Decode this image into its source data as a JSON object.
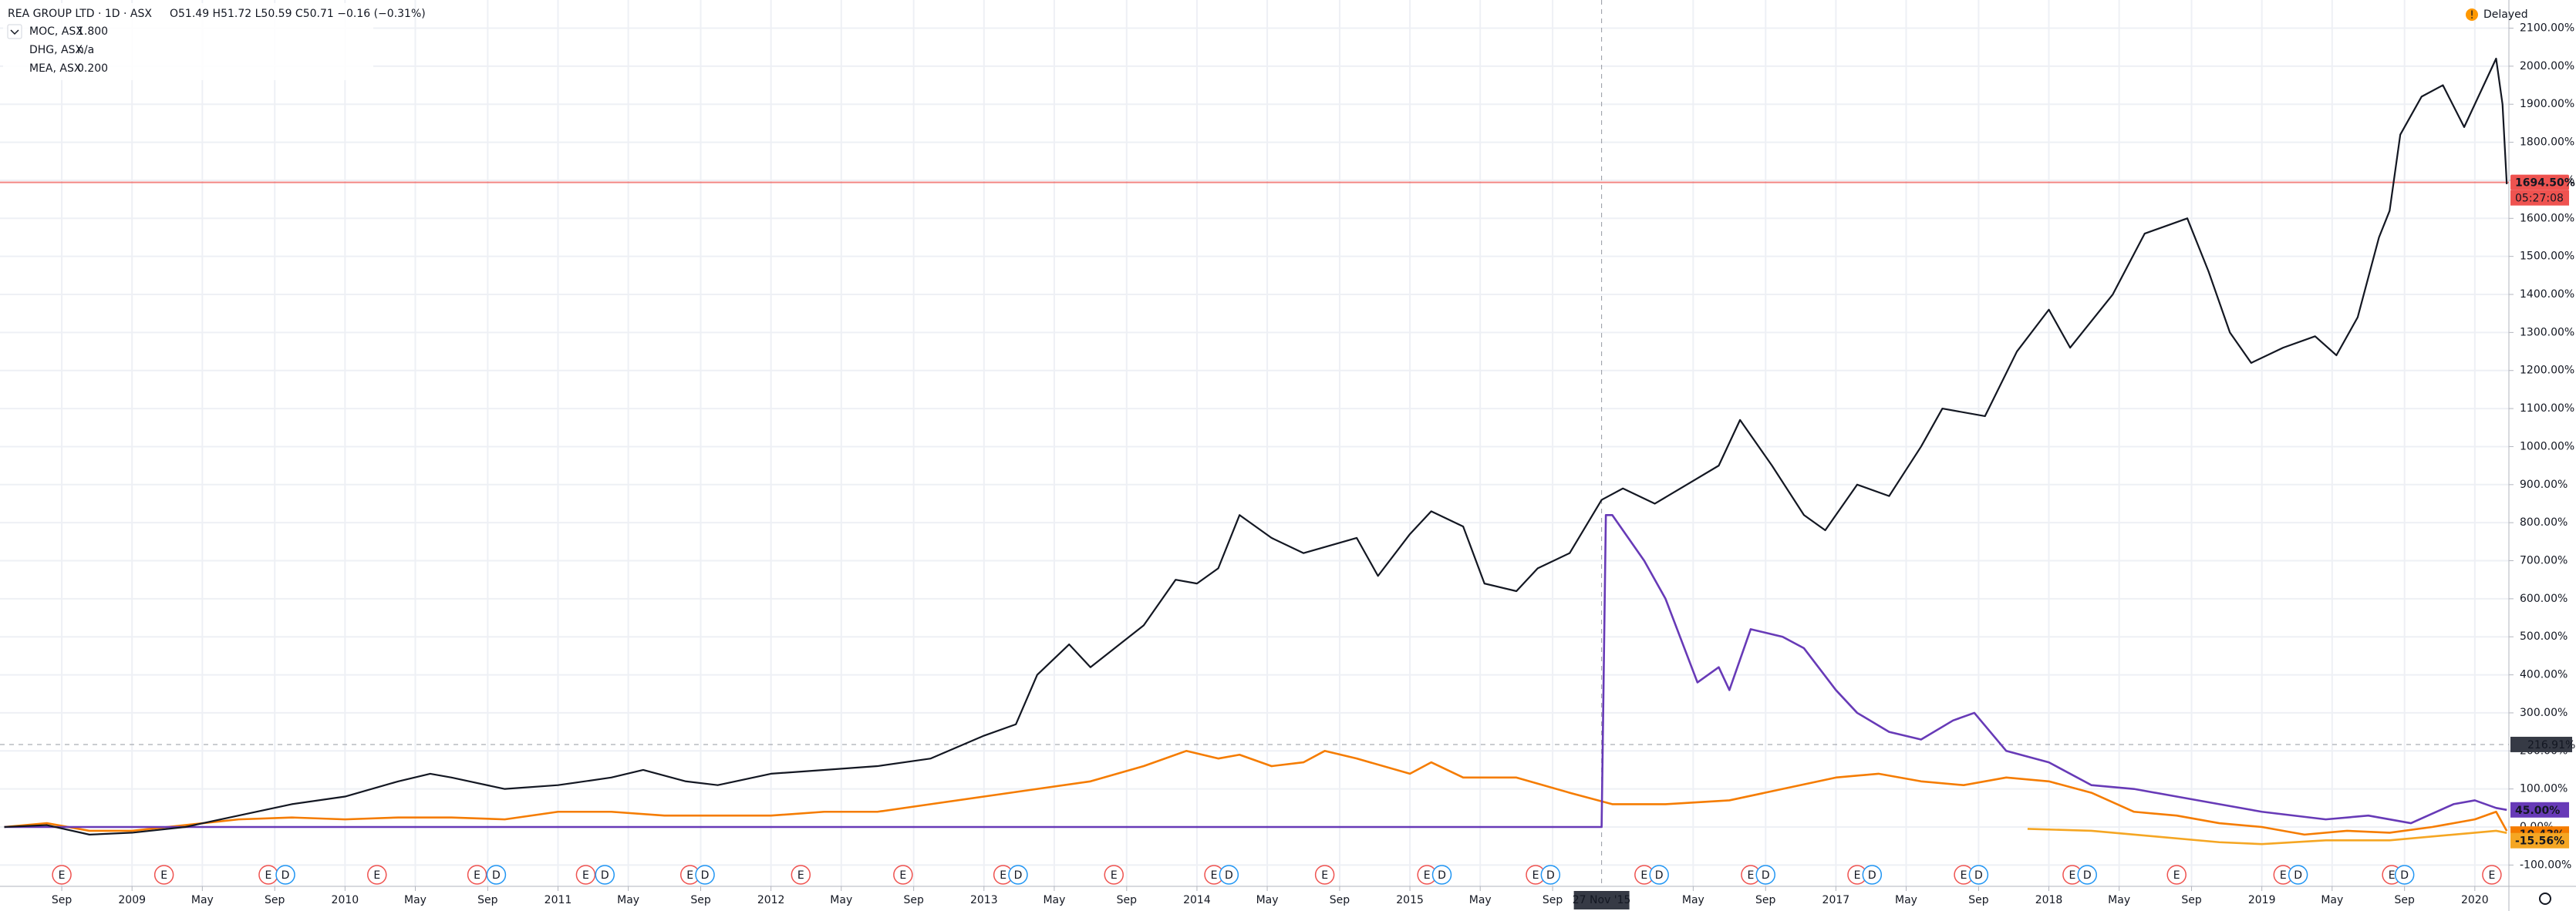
{
  "chart_data": {
    "type": "line",
    "title": "REA GROUP LTD · 1D · ASX",
    "ohlc": "O51.49 H51.72 L50.59 C50.71 −0.16 (−0.31%)",
    "status": "Delayed",
    "compare_legend": [
      {
        "name": "MOC, ASX",
        "value": "1.800",
        "color": "#f57c00"
      },
      {
        "name": "DHG, ASX",
        "value": "n/a",
        "color": "#f5a623"
      },
      {
        "name": "MEA, ASX",
        "value": "0.200",
        "color": "#673ab7"
      }
    ],
    "xlim": [
      2008.38,
      2020.16
    ],
    "ylim": [
      -156,
      2174
    ],
    "grid": true,
    "series": [
      {
        "name": "REA",
        "color": "#131722",
        "x": [
          2008.4,
          2008.6,
          2008.8,
          2009.0,
          2009.25,
          2009.5,
          2009.75,
          2010.0,
          2010.25,
          2010.4,
          2010.5,
          2010.75,
          2011.0,
          2011.25,
          2011.4,
          2011.6,
          2011.75,
          2012.0,
          2012.25,
          2012.5,
          2012.75,
          2013.0,
          2013.15,
          2013.25,
          2013.4,
          2013.5,
          2013.75,
          2013.9,
          2014.0,
          2014.1,
          2014.2,
          2014.35,
          2014.5,
          2014.75,
          2014.85,
          2015.0,
          2015.1,
          2015.25,
          2015.35,
          2015.5,
          2015.6,
          2015.75,
          2015.9,
          2016.0,
          2016.15,
          2016.3,
          2016.45,
          2016.55,
          2016.7,
          2016.85,
          2016.95,
          2017.1,
          2017.25,
          2017.4,
          2017.5,
          2017.7,
          2017.85,
          2018.0,
          2018.1,
          2018.2,
          2018.3,
          2018.45,
          2018.55,
          2018.65,
          2018.75,
          2018.85,
          2018.95,
          2019.1,
          2019.25,
          2019.35,
          2019.45,
          2019.55,
          2019.6,
          2019.65,
          2019.75,
          2019.85,
          2019.95,
          2020.05,
          2020.1,
          2020.13,
          2020.15
        ],
        "values": [
          0,
          5,
          -20,
          -15,
          0,
          30,
          60,
          80,
          120,
          140,
          130,
          100,
          110,
          130,
          150,
          120,
          110,
          140,
          150,
          160,
          180,
          240,
          270,
          400,
          480,
          420,
          530,
          650,
          640,
          680,
          820,
          760,
          720,
          760,
          660,
          770,
          830,
          790,
          640,
          620,
          680,
          720,
          860,
          890,
          850,
          900,
          950,
          1070,
          950,
          820,
          780,
          900,
          870,
          1000,
          1100,
          1080,
          1250,
          1360,
          1260,
          1330,
          1400,
          1560,
          1580,
          1600,
          1460,
          1300,
          1220,
          1260,
          1290,
          1240,
          1340,
          1550,
          1620,
          1820,
          1920,
          1950,
          1840,
          1960,
          2020,
          1900,
          1690
        ]
      },
      {
        "name": "MOC",
        "color": "#f57c00",
        "x": [
          2008.4,
          2008.6,
          2008.8,
          2009.0,
          2009.25,
          2009.5,
          2009.75,
          2010.0,
          2010.25,
          2010.5,
          2010.75,
          2011.0,
          2011.25,
          2011.5,
          2011.75,
          2012.0,
          2012.25,
          2012.5,
          2012.75,
          2013.0,
          2013.25,
          2013.5,
          2013.75,
          2013.95,
          2014.1,
          2014.2,
          2014.35,
          2014.5,
          2014.6,
          2014.75,
          2015.0,
          2015.1,
          2015.25,
          2015.5,
          2015.75,
          2015.95,
          2016.2,
          2016.5,
          2016.75,
          2017.0,
          2017.2,
          2017.4,
          2017.6,
          2017.8,
          2018.0,
          2018.2,
          2018.4,
          2018.6,
          2018.8,
          2019.0,
          2019.2,
          2019.4,
          2019.6,
          2019.8,
          2020.0,
          2020.1,
          2020.15
        ],
        "values": [
          0,
          10,
          -10,
          -10,
          5,
          20,
          25,
          20,
          25,
          25,
          20,
          40,
          40,
          30,
          30,
          30,
          40,
          40,
          60,
          80,
          100,
          120,
          160,
          200,
          180,
          190,
          160,
          170,
          200,
          180,
          140,
          170,
          130,
          130,
          90,
          60,
          60,
          70,
          100,
          130,
          140,
          120,
          110,
          130,
          120,
          90,
          40,
          30,
          10,
          0,
          -20,
          -10,
          -15,
          0,
          20,
          40,
          -10.43
        ]
      },
      {
        "name": "DHG",
        "color": "#f5a623",
        "x": [
          2017.9,
          2018.2,
          2018.5,
          2018.8,
          2019.0,
          2019.3,
          2019.6,
          2019.8,
          2020.0,
          2020.1,
          2020.15
        ],
        "values": [
          -5,
          -10,
          -25,
          -40,
          -45,
          -35,
          -35,
          -25,
          -15,
          -10,
          -15.56
        ]
      },
      {
        "name": "MEA",
        "color": "#673ab7",
        "x": [
          2008.4,
          2015.9,
          2015.92,
          2015.95,
          2016.0,
          2016.1,
          2016.2,
          2016.35,
          2016.45,
          2016.5,
          2016.6,
          2016.75,
          2016.85,
          2017.0,
          2017.1,
          2017.25,
          2017.4,
          2017.55,
          2017.65,
          2017.8,
          2018.0,
          2018.2,
          2018.4,
          2018.6,
          2018.8,
          2019.0,
          2019.3,
          2019.5,
          2019.7,
          2019.9,
          2020.0,
          2020.1,
          2020.15
        ],
        "values": [
          0,
          0,
          820,
          820,
          780,
          700,
          600,
          380,
          420,
          360,
          520,
          500,
          470,
          360,
          300,
          250,
          230,
          280,
          300,
          200,
          170,
          110,
          100,
          80,
          60,
          40,
          20,
          30,
          10,
          60,
          70,
          50,
          45
        ]
      }
    ],
    "yticks": [
      {
        "value": -100,
        "label": "-100.00%"
      },
      {
        "value": 0,
        "label": "0.00%"
      },
      {
        "value": 100,
        "label": "100.00%"
      },
      {
        "value": 200,
        "label": "200.00%"
      },
      {
        "value": 300,
        "label": "300.00%"
      },
      {
        "value": 400,
        "label": "400.00%"
      },
      {
        "value": 500,
        "label": "500.00%"
      },
      {
        "value": 600,
        "label": "600.00%"
      },
      {
        "value": 700,
        "label": "700.00%"
      },
      {
        "value": 800,
        "label": "800.00%"
      },
      {
        "value": 900,
        "label": "900.00%"
      },
      {
        "value": 1000,
        "label": "1000.00%"
      },
      {
        "value": 1100,
        "label": "1100.00%"
      },
      {
        "value": 1200,
        "label": "1200.00%"
      },
      {
        "value": 1300,
        "label": "1300.00%"
      },
      {
        "value": 1400,
        "label": "1400.00%"
      },
      {
        "value": 1500,
        "label": "1500.00%"
      },
      {
        "value": 1600,
        "label": "1600.00%"
      },
      {
        "value": 1700,
        "label": "1700.00%"
      },
      {
        "value": 1800,
        "label": "1800.00%"
      },
      {
        "value": 1900,
        "label": "1900.00%"
      },
      {
        "value": 2000,
        "label": "2000.00%"
      },
      {
        "value": 2100,
        "label": "2100.00%"
      }
    ],
    "xticks": [
      {
        "value": 2008.67,
        "label": "Sep"
      },
      2009,
      {
        "value": 2009.33,
        "label": "May"
      },
      {
        "value": 2009.67,
        "label": "Sep"
      },
      2010,
      {
        "value": 2010.33,
        "label": "May"
      },
      {
        "value": 2010.67,
        "label": "Sep"
      },
      2011,
      {
        "value": 2011.33,
        "label": "May"
      },
      {
        "value": 2011.67,
        "label": "Sep"
      },
      2012,
      {
        "value": 2012.33,
        "label": "May"
      },
      {
        "value": 2012.67,
        "label": "Sep"
      },
      2013,
      {
        "value": 2013.33,
        "label": "May"
      },
      {
        "value": 2013.67,
        "label": "Sep"
      },
      2014,
      {
        "value": 2014.33,
        "label": "May"
      },
      {
        "value": 2014.67,
        "label": "Sep"
      },
      2015,
      {
        "value": 2015.33,
        "label": "May"
      },
      {
        "value": 2015.67,
        "label": "Sep"
      },
      {
        "value": 2016.33,
        "label": "May"
      },
      {
        "value": 2016.67,
        "label": "Sep"
      },
      2017,
      {
        "value": 2017.33,
        "label": "May"
      },
      {
        "value": 2017.67,
        "label": "Sep"
      },
      2018,
      {
        "value": 2018.33,
        "label": "May"
      },
      {
        "value": 2018.67,
        "label": "Sep"
      },
      2019,
      {
        "value": 2019.33,
        "label": "May"
      },
      {
        "value": 2019.67,
        "label": "Sep"
      },
      2020
    ],
    "price_line": {
      "value": 1694.5,
      "label": "1694.50%",
      "color": "#ef5350"
    },
    "countdown": "05:27:08",
    "crosshair": {
      "x": 2015.9,
      "x_label": "27 Nov '15",
      "y": 216.91,
      "y_label": "216.91%"
    },
    "last_labels": [
      {
        "value": 45,
        "label": "45.00%",
        "color": "#673ab7"
      },
      {
        "value": -10.43,
        "label": "-10.43%",
        "color": "#f57c00"
      },
      {
        "value": -15.56,
        "label": "-15.56%",
        "color": "#f5a623"
      }
    ],
    "events": [
      {
        "x": 2008.67,
        "label": "E"
      },
      {
        "x": 2009.15,
        "label": "E"
      },
      {
        "x": 2009.64,
        "label": "E"
      },
      {
        "x": 2009.72,
        "label": "D"
      },
      {
        "x": 2010.15,
        "label": "E"
      },
      {
        "x": 2010.62,
        "label": "E"
      },
      {
        "x": 2010.71,
        "label": "D"
      },
      {
        "x": 2011.13,
        "label": "E"
      },
      {
        "x": 2011.22,
        "label": "D"
      },
      {
        "x": 2011.62,
        "label": "E"
      },
      {
        "x": 2011.69,
        "label": "D"
      },
      {
        "x": 2012.14,
        "label": "E"
      },
      {
        "x": 2012.62,
        "label": "E"
      },
      {
        "x": 2013.09,
        "label": "E"
      },
      {
        "x": 2013.16,
        "label": "D"
      },
      {
        "x": 2013.61,
        "label": "E"
      },
      {
        "x": 2014.08,
        "label": "E"
      },
      {
        "x": 2014.15,
        "label": "D"
      },
      {
        "x": 2014.6,
        "label": "E"
      },
      {
        "x": 2015.08,
        "label": "E"
      },
      {
        "x": 2015.15,
        "label": "D"
      },
      {
        "x": 2015.59,
        "label": "E"
      },
      {
        "x": 2015.66,
        "label": "D"
      },
      {
        "x": 2016.1,
        "label": "E"
      },
      {
        "x": 2016.17,
        "label": "D"
      },
      {
        "x": 2016.6,
        "label": "E"
      },
      {
        "x": 2016.67,
        "label": "D"
      },
      {
        "x": 2017.1,
        "label": "E"
      },
      {
        "x": 2017.17,
        "label": "D"
      },
      {
        "x": 2017.6,
        "label": "E"
      },
      {
        "x": 2017.67,
        "label": "D"
      },
      {
        "x": 2018.11,
        "label": "E"
      },
      {
        "x": 2018.18,
        "label": "D"
      },
      {
        "x": 2018.6,
        "label": "E"
      },
      {
        "x": 2019.1,
        "label": "E"
      },
      {
        "x": 2019.17,
        "label": "D"
      },
      {
        "x": 2019.61,
        "label": "E"
      },
      {
        "x": 2019.67,
        "label": "D"
      },
      {
        "x": 2020.08,
        "label": "E"
      }
    ]
  }
}
